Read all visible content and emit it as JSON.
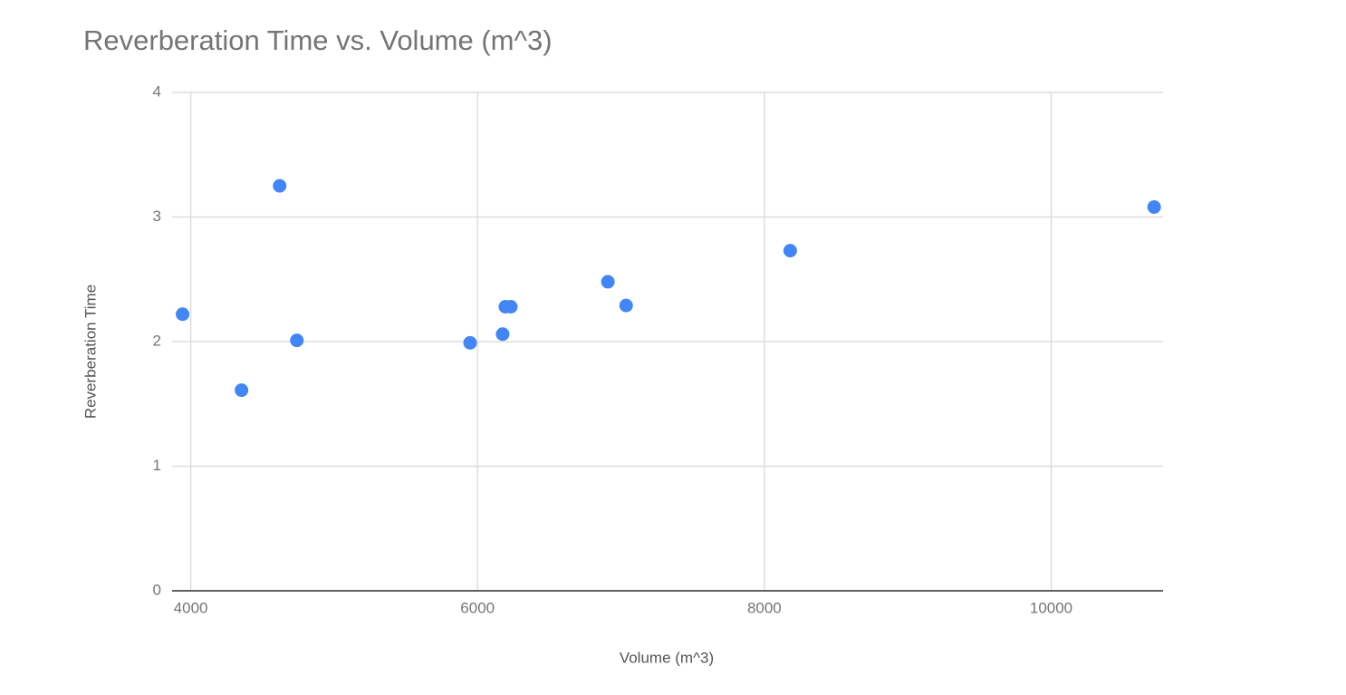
{
  "chart_data": {
    "type": "scatter",
    "title": "Reverberation Time vs. Volume (m^3)",
    "x_label": "Volume (m^3)",
    "y_label": "Reverberation Time",
    "series": [
      {
        "color": "#4285f4",
        "x": [
          3943,
          4354,
          4620,
          4740,
          5948,
          6175,
          6194,
          6232,
          6909,
          7036,
          8180,
          10718
        ],
        "values": [
          2.22,
          1.61,
          3.25,
          2.01,
          1.99,
          2.06,
          2.28,
          2.28,
          2.48,
          2.29,
          2.73,
          3.08
        ]
      }
    ],
    "xlim": [
      3870,
      10780
    ],
    "xticks": [
      4000,
      6000,
      8000,
      10000
    ],
    "ylim": [
      0,
      4
    ],
    "yticks": [
      0,
      1,
      2,
      3,
      4
    ],
    "grid": true
  }
}
